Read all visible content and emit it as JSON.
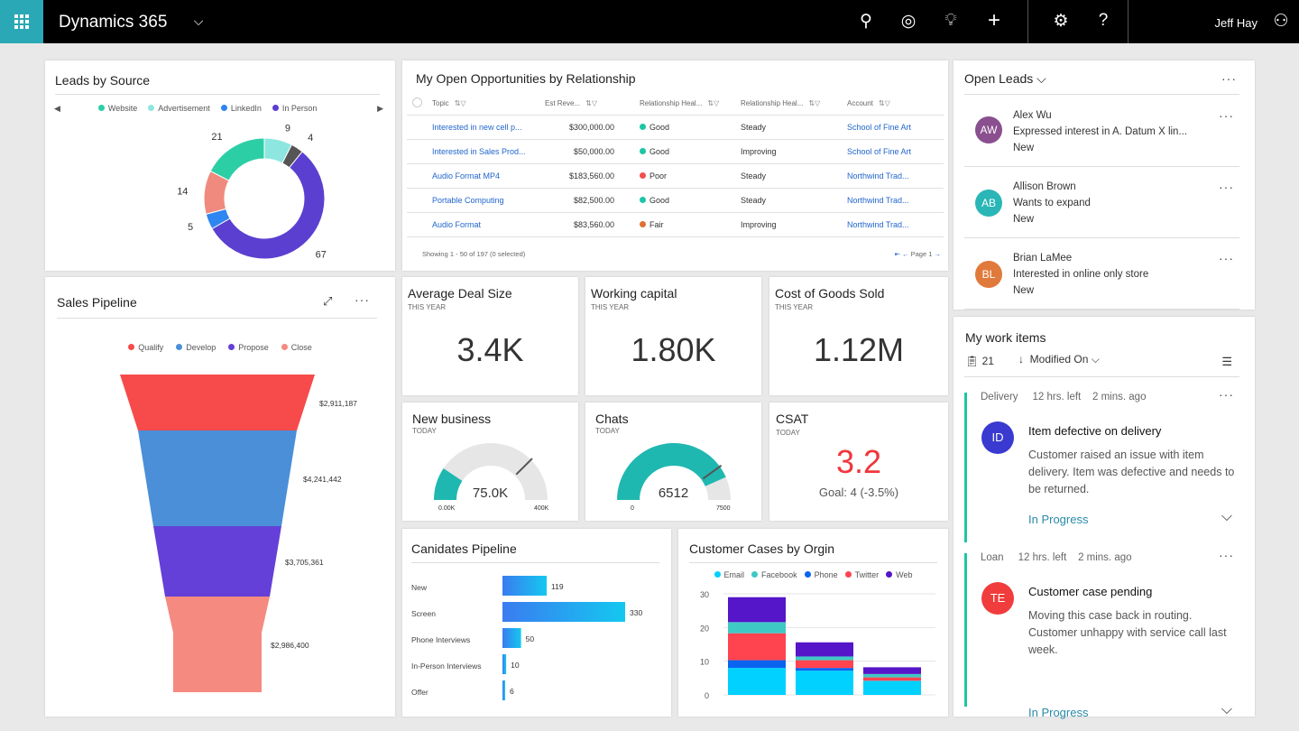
{
  "header": {
    "app": "Dynamics 365",
    "user": "Jeff Hay"
  },
  "leads_by_source": {
    "title": "Leads by Source",
    "legend": [
      "Website",
      "Advertisement",
      "LinkedIn",
      "In Person"
    ]
  },
  "opportunities": {
    "title": "My Open Opportunities by Relationship",
    "columns": [
      "Topic",
      "Est Reve...",
      "Relationship Heal...",
      "Relationship Heal...",
      "Account"
    ],
    "rows": [
      {
        "topic": "Interested in new cell p...",
        "rev": "$300,000.00",
        "health": "Good",
        "hcolor": "#1cc5a5",
        "trend": "Steady",
        "account": "School of Fine Art"
      },
      {
        "topic": "Interested in Sales Prod...",
        "rev": "$50,000.00",
        "health": "Good",
        "hcolor": "#1cc5a5",
        "trend": "Improving",
        "account": "School of Fine Art"
      },
      {
        "topic": "Audio Format MP4",
        "rev": "$183,560.00",
        "health": "Poor",
        "hcolor": "#f05050",
        "trend": "Steady",
        "account": "Northwind Trad..."
      },
      {
        "topic": "Portable Computing",
        "rev": "$82,500.00",
        "health": "Good",
        "hcolor": "#1cc5a5",
        "trend": "Steady",
        "account": "Northwind Trad..."
      },
      {
        "topic": "Audio Format",
        "rev": "$83,560.00",
        "health": "Fair",
        "hcolor": "#e07030",
        "trend": "Improving",
        "account": "Northwind Trad..."
      }
    ],
    "footer": "Showing 1 - 50 of 197 (0 selected)",
    "page": "Page 1"
  },
  "open_leads": {
    "title": "Open Leads",
    "items": [
      {
        "initials": "AW",
        "color": "#8a4f8f",
        "name": "Alex Wu",
        "desc": "Expressed interest in A. Datum X lin...",
        "status": "New"
      },
      {
        "initials": "AB",
        "color": "#2ab6b6",
        "name": "Allison Brown",
        "desc": "Wants to expand",
        "status": "New"
      },
      {
        "initials": "BL",
        "color": "#e07a3c",
        "name": "Brian LaMee",
        "desc": "Interested in online only store",
        "status": "New"
      }
    ]
  },
  "kpis": [
    {
      "title": "Average Deal Size",
      "period": "THIS YEAR",
      "value": "3.4K"
    },
    {
      "title": "Working capital",
      "period": "THIS YEAR",
      "value": "1.80K"
    },
    {
      "title": "Cost of Goods Sold",
      "period": "THIS YEAR",
      "value": "1.12M"
    }
  ],
  "gauges": [
    {
      "title": "New business",
      "period": "TODAY",
      "value": 75000,
      "label": "75.0K",
      "min": "0.00K",
      "max": "400K",
      "maxv": 400000,
      "target": 300000
    },
    {
      "title": "Chats",
      "period": "TODAY",
      "value": 6512,
      "label": "6512",
      "min": "0",
      "max": "7500",
      "maxv": 7500,
      "target": 6000
    }
  ],
  "csat": {
    "title": "CSAT",
    "period": "TODAY",
    "value": "3.2",
    "goal": "Goal: 4 (-3.5%)"
  },
  "work_items": {
    "title": "My work items",
    "count": "21",
    "sort": "Modified On",
    "items": [
      {
        "type": "Delivery",
        "left": "12 hrs. left",
        "ago": "2 mins. ago",
        "initials": "ID",
        "color": "#3a3ad0",
        "title": "Item defective on delivery",
        "desc": "Customer raised an issue with item delivery. Item was defective and needs to be returned.",
        "status": "In Progress"
      },
      {
        "type": "Loan",
        "left": "12 hrs. left",
        "ago": "2 mins. ago",
        "initials": "TE",
        "color": "#f03c3c",
        "title": "Customer case pending",
        "desc": "Moving this case back in routing. Customer unhappy with service call last week.",
        "status": "In Progress"
      }
    ]
  },
  "chart_data": [
    {
      "type": "pie",
      "title": "Leads by Source",
      "donut": true,
      "values": [
        9,
        4,
        67,
        5,
        14,
        21
      ],
      "colors": [
        "#8ee6e0",
        "#555555",
        "#5b3fd0",
        "#2f86f0",
        "#f08a7e",
        "#2ccfa5"
      ],
      "legend": [
        "Website",
        "Advertisement",
        "LinkedIn",
        "In Person"
      ]
    },
    {
      "type": "funnel",
      "title": "Sales Pipeline",
      "categories": [
        "Qualify",
        "Develop",
        "Propose",
        "Close"
      ],
      "values": [
        2911187,
        4241442,
        3705361,
        2986400
      ],
      "labels": [
        "$2,911,187",
        "$4,241,442",
        "$3,705,361",
        "$2,986,400"
      ],
      "colors": [
        "#f74a4a",
        "#4a8fd8",
        "#6440d8",
        "#f58a80"
      ]
    },
    {
      "type": "bar",
      "orientation": "horizontal",
      "title": "Canidates Pipeline",
      "categories": [
        "New",
        "Screen",
        "Phone Interviews",
        "In-Person Interviews",
        "Offer"
      ],
      "values": [
        119,
        330,
        50,
        10,
        6
      ]
    },
    {
      "type": "bar",
      "stacked": true,
      "title": "Customer Cases by Orgin",
      "ylim": [
        0,
        30
      ],
      "yticks": [
        0,
        10,
        20,
        30
      ],
      "series": [
        {
          "name": "Email",
          "color": "#00d1ff",
          "values": [
            8,
            7.2,
            4.2
          ]
        },
        {
          "name": "Phone",
          "color": "#0a64f0",
          "values": [
            2.3,
            0.8,
            0
          ]
        },
        {
          "name": "Twitter",
          "color": "#ff4450",
          "values": [
            8,
            2.3,
            1
          ]
        },
        {
          "name": "Facebook",
          "color": "#3fc9c5",
          "values": [
            3.3,
            1.1,
            1
          ]
        },
        {
          "name": "Web",
          "color": "#5515c8",
          "values": [
            7.4,
            4.2,
            2
          ]
        }
      ],
      "legend": [
        "Email",
        "Facebook",
        "Phone",
        "Twitter",
        "Web"
      ]
    }
  ]
}
